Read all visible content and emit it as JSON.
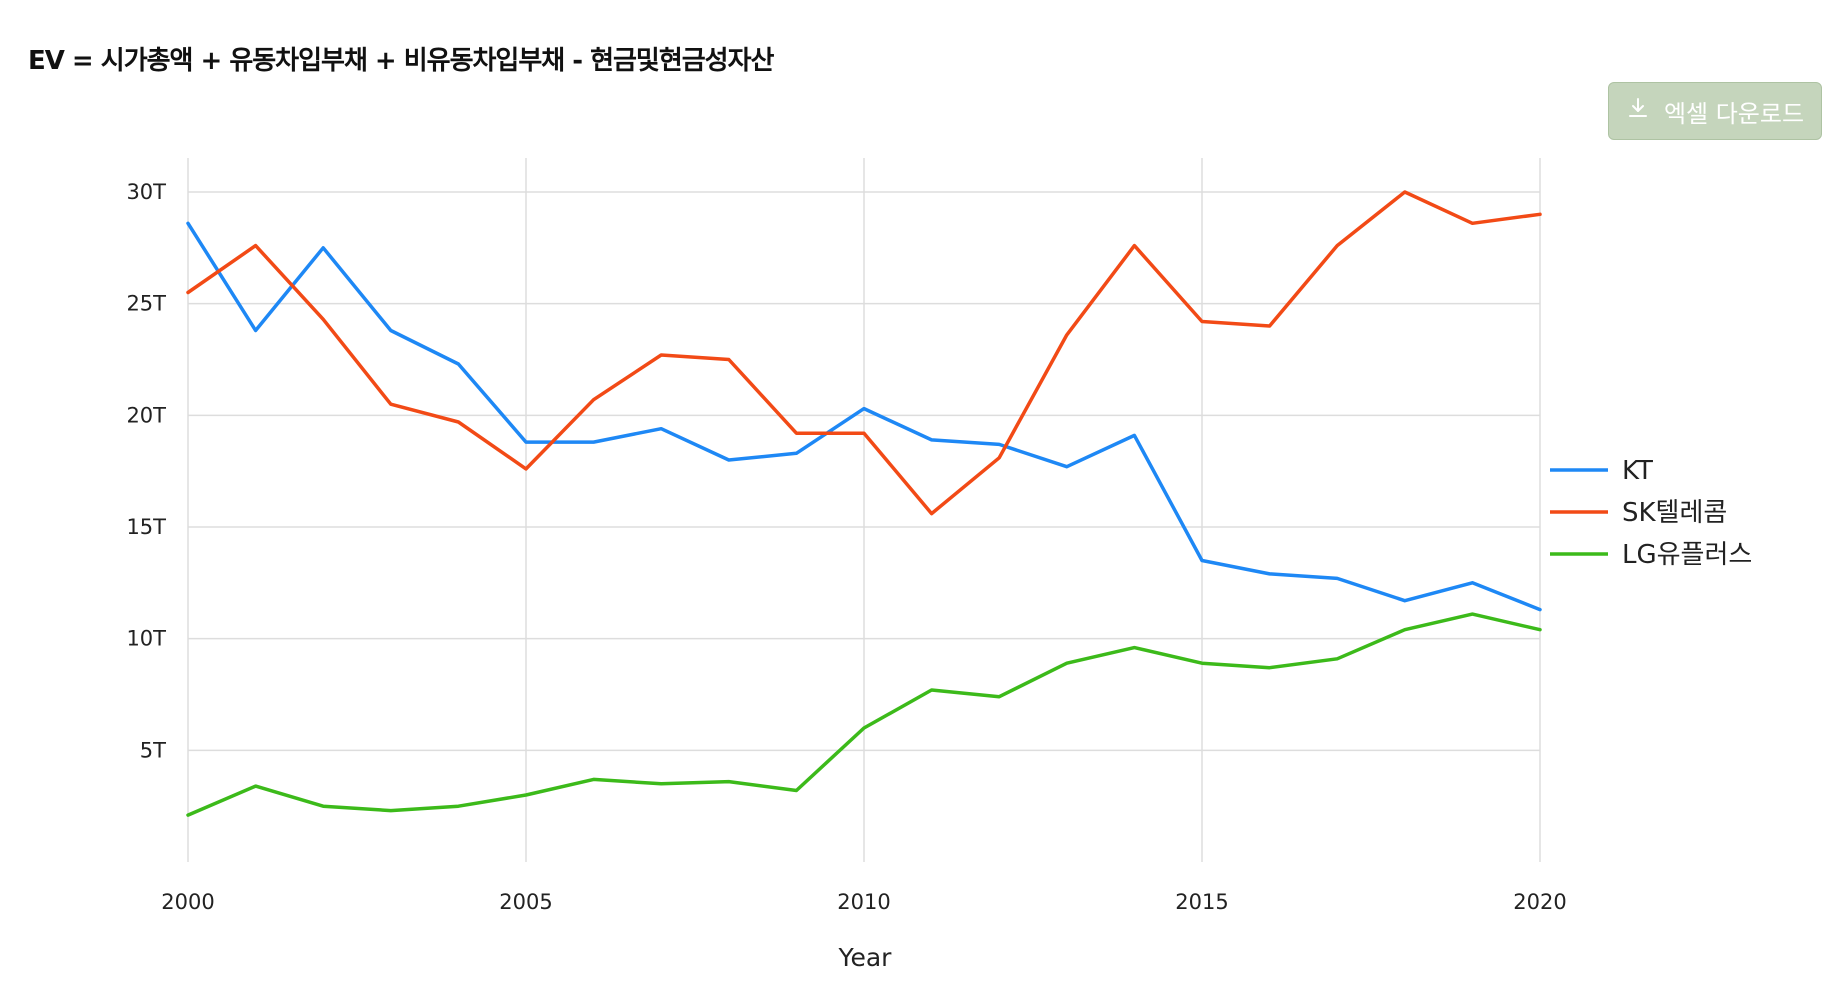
{
  "title": "EV = 시가총액 + 유동차입부채 + 비유동차입부채 - 현금및현금성자산",
  "download_button": {
    "label": "엑셀 다운로드",
    "icon": "download-icon"
  },
  "chart_data": {
    "type": "line",
    "xlabel": "Year",
    "ylabel": "",
    "xlim": [
      2000,
      2020
    ],
    "ylim": [
      0,
      31.5
    ],
    "x_ticks": [
      2000,
      2005,
      2010,
      2015,
      2020
    ],
    "y_ticks": [
      5,
      10,
      15,
      20,
      25,
      30
    ],
    "y_tick_labels": [
      "5T",
      "10T",
      "15T",
      "20T",
      "25T",
      "30T"
    ],
    "x": [
      2000,
      2001,
      2002,
      2003,
      2004,
      2005,
      2006,
      2007,
      2008,
      2009,
      2010,
      2011,
      2012,
      2013,
      2014,
      2015,
      2016,
      2017,
      2018,
      2019,
      2020
    ],
    "series": [
      {
        "name": "KT",
        "color": "#1e88f5",
        "values": [
          28.6,
          23.8,
          27.5,
          23.8,
          22.3,
          18.8,
          18.8,
          19.4,
          18.0,
          18.3,
          20.3,
          18.9,
          18.7,
          17.7,
          19.1,
          13.5,
          12.9,
          12.7,
          11.7,
          12.5,
          11.3
        ]
      },
      {
        "name": "SK텔레콤",
        "color": "#f24a16",
        "values": [
          25.5,
          27.6,
          24.3,
          20.5,
          19.7,
          17.6,
          20.7,
          22.7,
          22.5,
          19.2,
          19.2,
          15.6,
          18.1,
          23.6,
          27.6,
          24.2,
          24.0,
          27.6,
          30.0,
          28.6,
          29.0
        ]
      },
      {
        "name": "LG유플러스",
        "color": "#3cba1a",
        "values": [
          2.1,
          3.4,
          2.5,
          2.3,
          2.5,
          3.0,
          3.7,
          3.5,
          3.6,
          3.2,
          6.0,
          7.7,
          7.4,
          8.9,
          9.6,
          8.9,
          8.7,
          9.1,
          10.4,
          11.1,
          10.4
        ]
      }
    ],
    "grid": true,
    "legend_position": "right"
  }
}
